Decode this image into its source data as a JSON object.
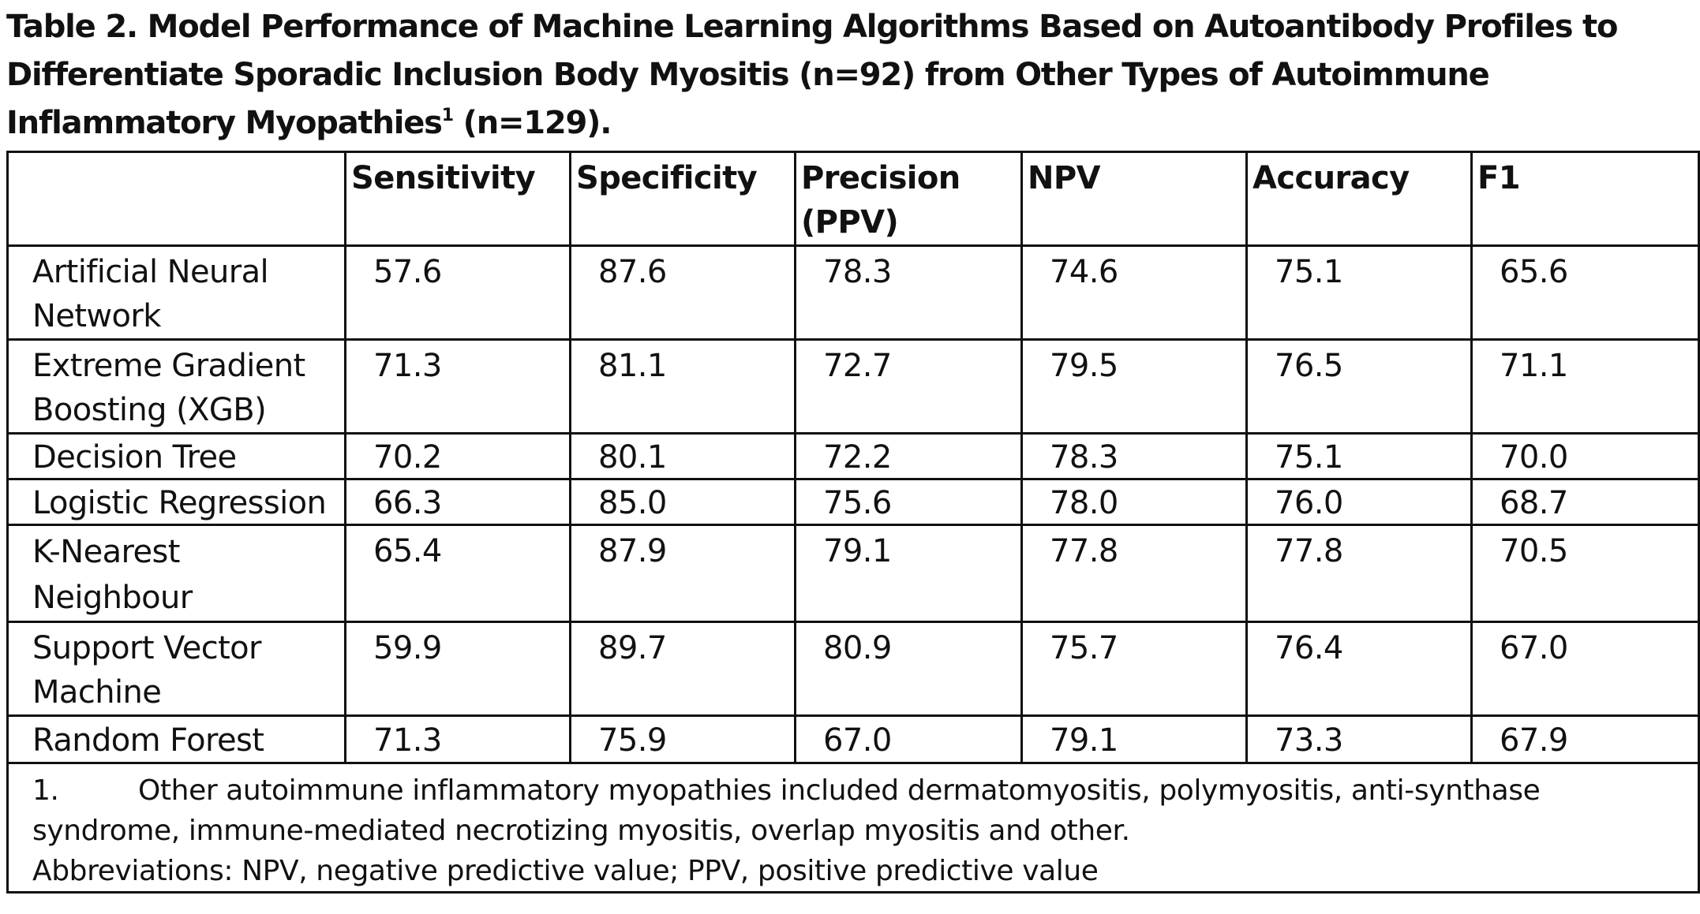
{
  "title": {
    "main": "Table 2. Model Performance of Machine Learning Algorithms Based on Autoantibody Profiles to Differentiate Sporadic Inclusion Body Myositis (n=92) from Other Types of Autoimmune Inflammatory Myopathies",
    "superscript": "1",
    "tail": " (n=129)."
  },
  "table": {
    "headers": [
      "",
      "Sensitivity",
      "Specificity",
      "Precision (PPV)",
      "NPV",
      "Accuracy",
      "F1"
    ],
    "rows": [
      {
        "model": "Artificial Neural Network",
        "values": [
          "57.6",
          "87.6",
          "78.3",
          "74.6",
          "75.1",
          "65.6"
        ]
      },
      {
        "model": "Extreme Gradient Boosting (XGB)",
        "values": [
          "71.3",
          "81.1",
          "72.7",
          "79.5",
          "76.5",
          "71.1"
        ]
      },
      {
        "model": "Decision Tree",
        "values": [
          "70.2",
          "80.1",
          "72.2",
          "78.3",
          "75.1",
          "70.0"
        ]
      },
      {
        "model": "Logistic Regression",
        "values": [
          "66.3",
          "85.0",
          "75.6",
          "78.0",
          "76.0",
          "68.7"
        ]
      },
      {
        "model": "K-Nearest Neighbour",
        "values": [
          "65.4",
          "87.9",
          "79.1",
          "77.8",
          "77.8",
          "70.5"
        ]
      },
      {
        "model": "Support Vector Machine",
        "values": [
          "59.9",
          "89.7",
          "80.9",
          "75.7",
          "76.4",
          "67.0"
        ]
      },
      {
        "model": "Random Forest",
        "values": [
          "71.3",
          "75.9",
          "67.0",
          "79.1",
          "73.3",
          "67.9"
        ]
      }
    ]
  },
  "footnotes": {
    "note_number": "1.",
    "note_text": "Other autoimmune inflammatory myopathies included dermatomyositis, polymyositis, anti-synthase syndrome, immune-mediated necrotizing myositis, overlap myositis and other.",
    "abbreviations": "Abbreviations: NPV, negative predictive value; PPV, positive predictive value"
  }
}
